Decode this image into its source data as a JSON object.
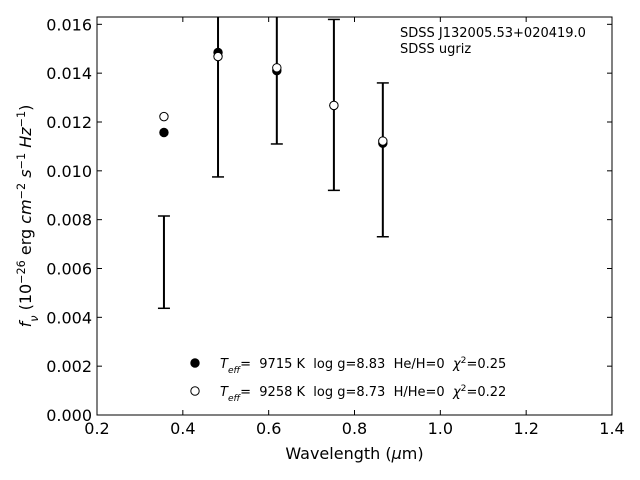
{
  "chart_data": {
    "type": "scatter",
    "annotations": [
      "SDSS J132005.53+020419.0",
      "SDSS ugriz"
    ],
    "xlabel": [
      "Wavelength (",
      "μ",
      "m)"
    ],
    "xlabel_style": [
      "n",
      "i",
      "n"
    ],
    "ylabel": [
      "f",
      "ν",
      " (10",
      "−26",
      " erg ",
      "cm",
      "−2",
      " ",
      "s",
      "−1",
      " ",
      "Hz",
      "−1",
      ")"
    ],
    "ylabel_style": [
      "i",
      "isub",
      "n",
      "sup",
      "n",
      "i",
      "sup",
      "n",
      "i",
      "sup",
      "n",
      "i",
      "sup",
      "n"
    ],
    "xlim": [
      0.2,
      1.4
    ],
    "ylim": [
      0,
      0.0163
    ],
    "xticks": [
      0.2,
      0.4,
      0.6,
      0.8,
      {
        "value": 1,
        "label": "1.0"
      },
      1.2,
      1.4
    ],
    "yticks": [
      {
        "value": 0,
        "label": "0.000"
      },
      {
        "value": 0.002,
        "label": "0.002"
      },
      {
        "value": 0.004,
        "label": "0.004"
      },
      {
        "value": 0.006,
        "label": "0.006"
      },
      {
        "value": 0.008,
        "label": "0.008"
      },
      {
        "value": 0.01,
        "label": "0.010"
      },
      {
        "value": 0.012,
        "label": "0.012"
      },
      {
        "value": 0.014,
        "label": "0.014"
      },
      {
        "value": 0.016,
        "label": "0.016"
      }
    ],
    "observed": {
      "x": [
        0.356,
        0.482,
        0.619,
        0.752,
        0.866
      ],
      "values": [
        0.00626,
        0.0148,
        0.0141,
        0.0127,
        0.01045
      ],
      "errors": [
        0.00189,
        0.00505,
        0.003,
        0.0035,
        0.00315
      ],
      "color": "#000000"
    },
    "series": [
      {
        "name": [
          "T",
          "eff",
          "=  9715 K  log g=8.83  He/H=0  ",
          "χ",
          "2",
          "=0.25"
        ],
        "name_style": [
          "i",
          "isub",
          "n",
          "i",
          "sup",
          "n"
        ],
        "marker": "filled",
        "color": "#000000",
        "x": [
          0.356,
          0.482,
          0.619,
          0.752,
          0.866
        ],
        "values": [
          0.01157,
          0.01485,
          0.0141,
          0.01268,
          0.01113
        ]
      },
      {
        "name": [
          "T",
          "eff",
          "=  9258 K  log g=8.73  H/He=0  ",
          "χ",
          "2",
          "=0.22"
        ],
        "name_style": [
          "i",
          "isub",
          "n",
          "i",
          "sup",
          "n"
        ],
        "marker": "open",
        "color": "#000000",
        "x": [
          0.356,
          0.482,
          0.619,
          0.752,
          0.866
        ],
        "values": [
          0.01222,
          0.01468,
          0.01422,
          0.01268,
          0.01122
        ]
      }
    ]
  }
}
